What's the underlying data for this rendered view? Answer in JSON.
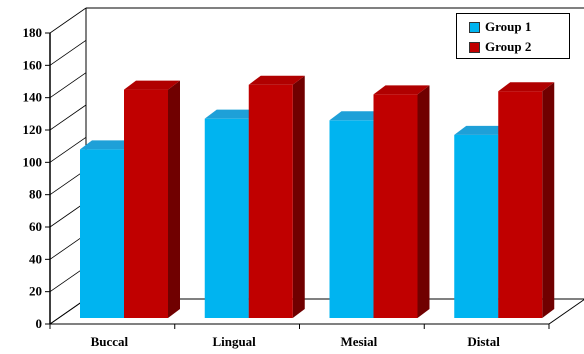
{
  "chart_data": {
    "type": "bar",
    "categories": [
      "Buccal",
      "Lingual",
      "Mesial",
      "Distal"
    ],
    "series": [
      {
        "name": "Group 1",
        "values": [
          108,
          127,
          126,
          117
        ]
      },
      {
        "name": "Group 2",
        "values": [
          145,
          148,
          142,
          144
        ]
      }
    ],
    "yticks": [
      "0",
      "20",
      "40",
      "60",
      "80",
      "100",
      "120",
      "140",
      "160",
      "180"
    ],
    "ylim": [
      0,
      180
    ],
    "legend_position": "top-right",
    "grid": false
  },
  "colors": {
    "series": [
      "#00B4F0",
      "#C00000"
    ],
    "series_top": [
      "#1EA0D8",
      "#B00000"
    ],
    "series_side": [
      "#0070A0",
      "#700000"
    ]
  }
}
